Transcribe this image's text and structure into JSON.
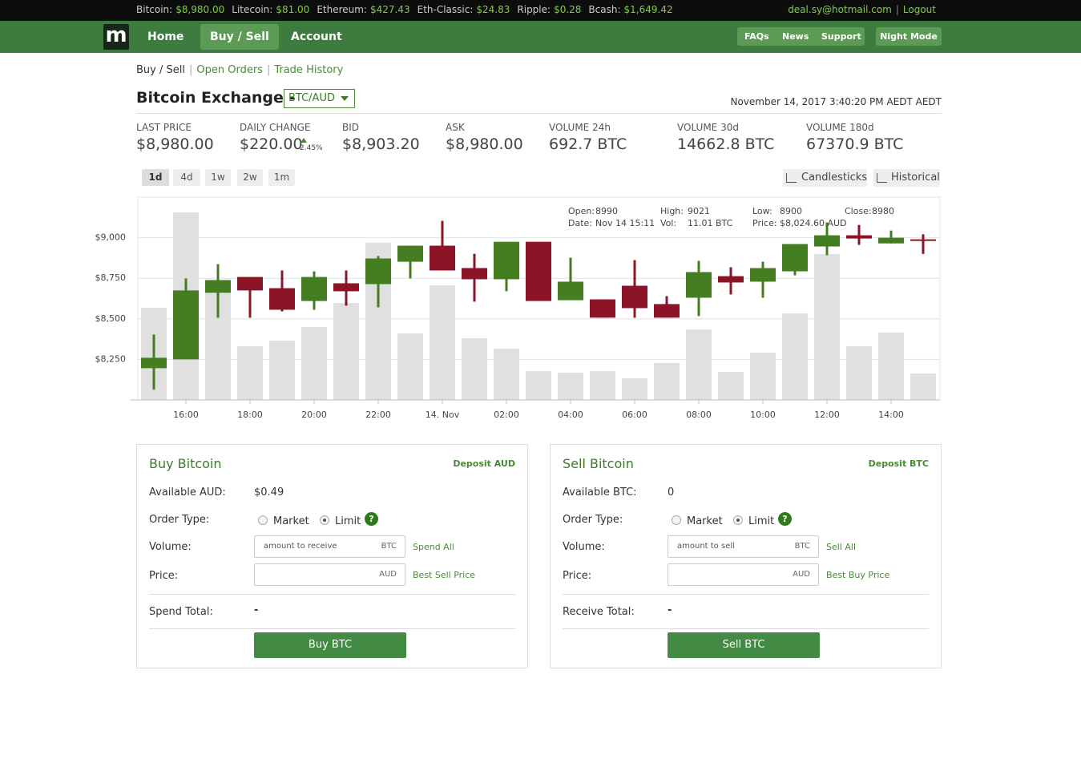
{
  "ticker": [
    {
      "name": "Bitcoin:",
      "price": "$8,980.00"
    },
    {
      "name": "Litecoin:",
      "price": "$81.00"
    },
    {
      "name": "Ethereum:",
      "price": "$427.43"
    },
    {
      "name": "Eth-Classic:",
      "price": "$24.83"
    },
    {
      "name": "Ripple:",
      "price": "$0.28"
    },
    {
      "name": "Bcash:",
      "price": "$1,649.42"
    }
  ],
  "user": {
    "email": "deal.sy@hotmail.com",
    "separator": "|",
    "logout": "Logout"
  },
  "nav": {
    "logo": "m",
    "left": [
      "Home",
      "Buy / Sell",
      "Account"
    ],
    "right": [
      "FAQs",
      "News",
      "Support"
    ],
    "night_mode": "Night Mode"
  },
  "breadcrumb": {
    "items": [
      "Buy / Sell",
      "Open Orders",
      "Trade History"
    ],
    "separator": "|"
  },
  "exchange": {
    "title": "Bitcoin Exchange -",
    "pair": "BTC/AUD",
    "datetime": "November 14, 2017 3:40:20 PM AEDT AEDT"
  },
  "stats": [
    {
      "label": "LAST PRICE",
      "value": "$8,980.00"
    },
    {
      "label": "DAILY CHANGE",
      "value": "$220.00",
      "change": "2.45%"
    },
    {
      "label": "BID",
      "value": "$8,903.20"
    },
    {
      "label": "ASK",
      "value": "$8,980.00"
    },
    {
      "label": "VOLUME 24h",
      "value": "692.7 BTC"
    },
    {
      "label": "VOLUME 30d",
      "value": "14662.8 BTC"
    },
    {
      "label": "VOLUME 180d",
      "value": "67370.9 BTC"
    }
  ],
  "ranges": [
    "1d",
    "4d",
    "1w",
    "2w",
    "1m"
  ],
  "views": [
    "Candlesticks",
    "Historical"
  ],
  "chart_data": {
    "type": "candlestick",
    "categories": [
      null,
      "16:00",
      null,
      "18:00",
      null,
      "20:00",
      null,
      "22:00",
      null,
      "14. Nov",
      null,
      "02:00",
      null,
      "04:00",
      null,
      "06:00",
      null,
      "08:00",
      null,
      "10:00",
      null,
      "12:00",
      null,
      "14:00",
      null
    ],
    "open": [
      8196,
      8250,
      8660,
      8758,
      8689,
      8610,
      8719,
      8714,
      8852,
      8951,
      8813,
      8744,
      8975,
      8615,
      8620,
      8704,
      8591,
      8630,
      8763,
      8729,
      8793,
      8946,
      9015,
      8965,
      8990
    ],
    "high": [
      8403,
      8749,
      8837,
      8758,
      8798,
      8793,
      8798,
      8887,
      8951,
      9104,
      8901,
      8975,
      8975,
      8877,
      8620,
      8862,
      8640,
      8857,
      8818,
      8852,
      8961,
      9094,
      9079,
      9044,
      9021
    ],
    "low": [
      8063,
      8250,
      8507,
      8507,
      8546,
      8556,
      8581,
      8571,
      8749,
      8798,
      8606,
      8670,
      8610,
      8615,
      8507,
      8507,
      8507,
      8517,
      8650,
      8630,
      8768,
      8892,
      8956,
      8965,
      8900
    ],
    "close": [
      8260,
      8675,
      8739,
      8675,
      8556,
      8758,
      8670,
      8872,
      8951,
      8798,
      8744,
      8975,
      8610,
      8729,
      8507,
      8566,
      8507,
      8788,
      8724,
      8813,
      8961,
      9015,
      8995,
      9000,
      8980
    ],
    "volume": [
      38.4,
      78.2,
      44.4,
      22.4,
      24.7,
      30.4,
      40.4,
      65.5,
      27.7,
      47.8,
      25.7,
      21.4,
      12.0,
      11.4,
      12.0,
      9.0,
      15.4,
      29.4,
      11.7,
      19.7,
      36.1,
      60.8,
      22.4,
      28.1,
      11.01
    ],
    "up_color": "#447d22",
    "down_color": "#8b1426",
    "volume_color": "#e0e0e0",
    "ylim": [
      8000,
      9250
    ],
    "yticks": [
      {
        "value": 8250,
        "label": "$8,250"
      },
      {
        "value": 8500,
        "label": "$8,500"
      },
      {
        "value": 8750,
        "label": "$8,750"
      },
      {
        "value": 9000,
        "label": "$9,000"
      }
    ],
    "y2lim": [
      0,
      84.5
    ],
    "grid": true,
    "tooltip": [
      {
        "label": "Open:",
        "value": "8990"
      },
      {
        "label": "Date:",
        "value": "Nov 14 15:11"
      },
      {
        "label": "High:",
        "value": "9021"
      },
      {
        "label": "Vol:",
        "value": "11.01 BTC"
      },
      {
        "label": "Low:",
        "value": "8900"
      },
      {
        "label": "Price:",
        "value": "$8,024.60 AUD"
      },
      {
        "label": "Close:",
        "value": "8980"
      }
    ]
  },
  "buy": {
    "title": "Buy Bitcoin",
    "deposit": "Deposit AUD",
    "available_label": "Available AUD:",
    "available": "$0.49",
    "order_type_label": "Order Type:",
    "options": [
      "Market",
      "Limit"
    ],
    "help": "?",
    "volume_label": "Volume:",
    "volume_placeholder": "amount to receive",
    "volume_unit": "BTC",
    "volume_action": "Spend All",
    "price_label": "Price:",
    "price_unit": "AUD",
    "price_action": "Best Sell Price",
    "total_label": "Spend Total:",
    "total": "-",
    "button": "Buy BTC"
  },
  "sell": {
    "title": "Sell Bitcoin",
    "deposit": "Deposit BTC",
    "available_label": "Available BTC:",
    "available": "0",
    "order_type_label": "Order Type:",
    "options": [
      "Market",
      "Limit"
    ],
    "help": "?",
    "volume_label": "Volume:",
    "volume_placeholder": "amount to sell",
    "volume_unit": "BTC",
    "volume_action": "Sell All",
    "price_label": "Price:",
    "price_unit": "AUD",
    "price_action": "Best Buy Price",
    "total_label": "Receive Total:",
    "total": "-",
    "button": "Sell BTC"
  }
}
